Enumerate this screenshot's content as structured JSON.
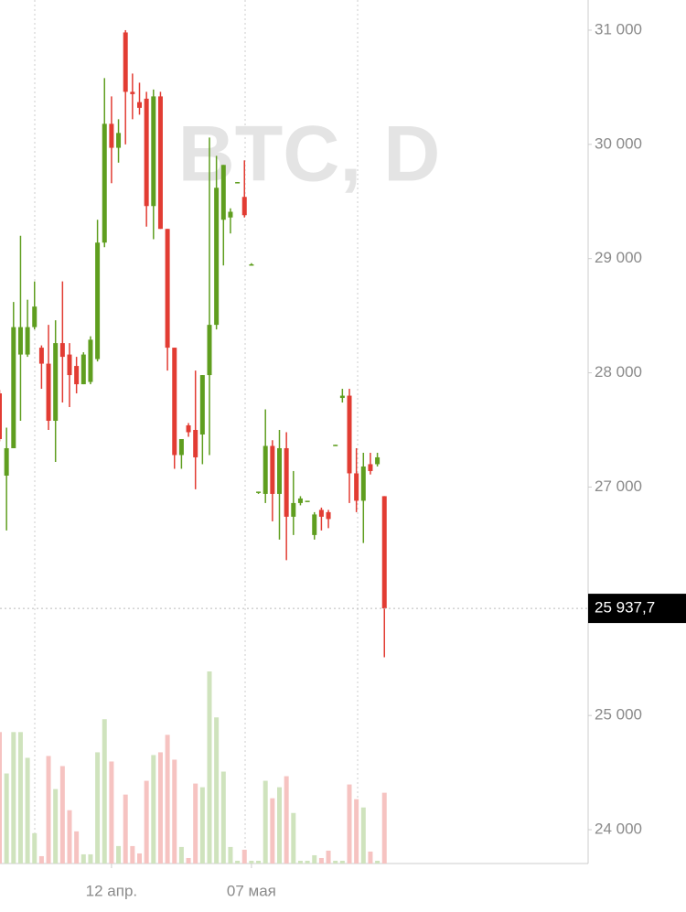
{
  "chart_data": {
    "type": "candlestick",
    "watermark": "BTC, D",
    "categories": [
      null,
      null,
      null,
      null,
      null,
      null,
      null,
      null,
      null,
      null,
      null,
      null,
      null,
      null,
      null,
      null,
      "12 апр.",
      null,
      null,
      null,
      null,
      null,
      null,
      null,
      null,
      null,
      null,
      null,
      null,
      null,
      null,
      null,
      null,
      null,
      null,
      null,
      "07 мая",
      null,
      null,
      null,
      null,
      null,
      null,
      null,
      null,
      null,
      null,
      null,
      null,
      null,
      null,
      null,
      null,
      null,
      null,
      null
    ],
    "open": [
      27820,
      27100,
      27340,
      28160,
      28160,
      28400,
      28220,
      28080,
      27580,
      28260,
      28160,
      28060,
      27900,
      27920,
      28120,
      29140,
      30180,
      29970,
      30980,
      30460,
      30370,
      30400,
      29460,
      30420,
      29260,
      28220,
      27280,
      27540,
      27500,
      27460,
      27980,
      28420,
      29340,
      29360,
      29660,
      29540,
      28940,
      26950,
      26940,
      27360,
      26940,
      27340,
      26740,
      26860,
      26880,
      26580,
      26800,
      26780,
      27360,
      27780,
      27800,
      27120,
      26880,
      27200,
      27200,
      26920
    ],
    "high": [
      27850,
      27520,
      28620,
      29200,
      28640,
      28800,
      28240,
      28420,
      28460,
      28800,
      28260,
      28140,
      28180,
      28320,
      29340,
      30580,
      30420,
      30220,
      31000,
      30620,
      30540,
      30460,
      30480,
      30460,
      29260,
      28220,
      27420,
      27560,
      28020,
      27980,
      30060,
      29900,
      29820,
      29440,
      29670,
      29860,
      28960,
      26960,
      27680,
      27410,
      27500,
      27480,
      27140,
      26920,
      26880,
      26780,
      26820,
      26800,
      27370,
      27860,
      27860,
      27340,
      27300,
      27300,
      27300,
      26920
    ],
    "low": [
      27400,
      26620,
      27340,
      27580,
      28140,
      28380,
      27860,
      27500,
      27220,
      27740,
      27700,
      27820,
      27900,
      27900,
      28100,
      29100,
      29660,
      29840,
      30000,
      30220,
      30260,
      29280,
      29170,
      29260,
      28020,
      27160,
      27160,
      27440,
      26980,
      27200,
      27280,
      28380,
      28940,
      29220,
      29660,
      29360,
      28940,
      26940,
      26860,
      26700,
      26540,
      26360,
      26580,
      26840,
      26880,
      26540,
      26620,
      26640,
      27360,
      27740,
      26860,
      26780,
      26510,
      27110,
      27180,
      25510
    ],
    "close": [
      27420,
      27340,
      28400,
      28400,
      28400,
      28580,
      28080,
      27580,
      28260,
      28140,
      27980,
      27900,
      28160,
      28290,
      29140,
      30180,
      29970,
      30100,
      30460,
      30440,
      30320,
      29460,
      30420,
      29260,
      28220,
      27280,
      27420,
      27480,
      27260,
      27980,
      28420,
      29620,
      29820,
      29410,
      29670,
      29380,
      28950,
      26960,
      27360,
      26940,
      27340,
      26740,
      26860,
      26900,
      26880,
      26760,
      26740,
      26720,
      27370,
      27800,
      27120,
      26880,
      27180,
      27140,
      27260,
      25937.7
    ],
    "volume": [
      143,
      98,
      143,
      143,
      115,
      33,
      8,
      117,
      81,
      106,
      58,
      35,
      10,
      10,
      121,
      157,
      111,
      19,
      75,
      19,
      11,
      90,
      118,
      121,
      140,
      113,
      18,
      6,
      87,
      83,
      209,
      159,
      100,
      18,
      3,
      15,
      3,
      3,
      90,
      71,
      83,
      95,
      55,
      3,
      3,
      9,
      6,
      14,
      3,
      3,
      86,
      70,
      61,
      13,
      3,
      77
    ],
    "up_color": "#5f9e1f",
    "down_color": "#e23c33",
    "up_volume_color": "#cfe3bd",
    "down_volume_color": "#f6c3c1",
    "ylim": [
      23704,
      31264
    ],
    "yticks": [
      {
        "value": 24000,
        "label": "24 000"
      },
      {
        "value": 25000,
        "label": "25 000"
      },
      {
        "value": 27000,
        "label": "27 000"
      },
      {
        "value": 28000,
        "label": "28 000"
      },
      {
        "value": 29000,
        "label": "29 000"
      },
      {
        "value": 30000,
        "label": "30 000"
      },
      {
        "value": 31000,
        "label": "31 000"
      }
    ],
    "last_price": {
      "value": 25937.7,
      "label": "25 937,7"
    }
  }
}
